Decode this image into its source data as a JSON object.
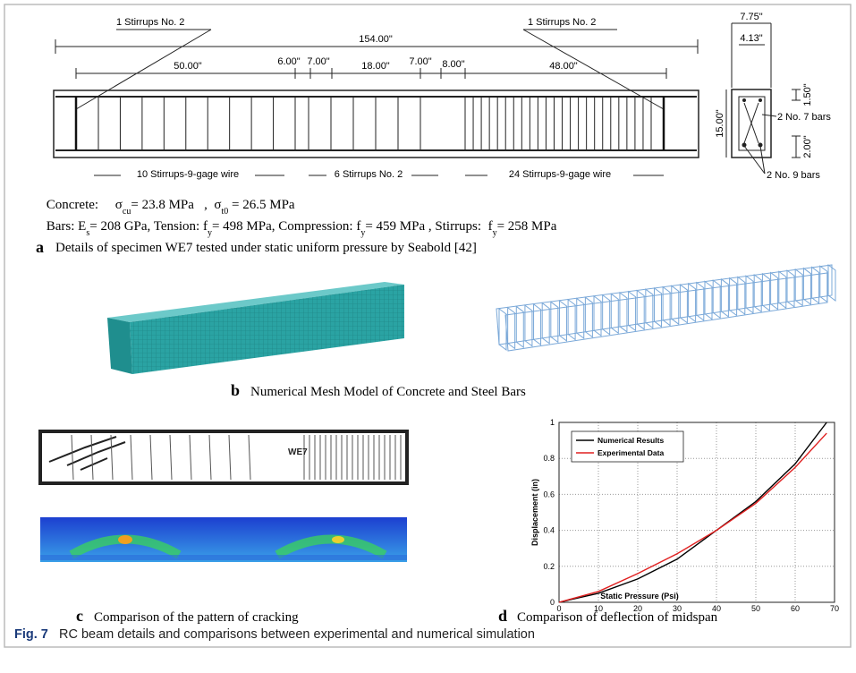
{
  "panel_a": {
    "leader_left": "1 Stirrups No. 2",
    "leader_right": "1 Stirrups No. 2",
    "dimensions": [
      "154.00\"",
      "50.00\"",
      "6.00\"",
      "7.00\"",
      "18.00\"",
      "7.00\"",
      "8.00\"",
      "48.00\""
    ],
    "stirrup_groups": [
      "10 Stirrups-9-gage wire",
      "6 Stirrups No. 2",
      "24 Stirrups-9-gage wire"
    ],
    "section": {
      "width_outer": "7.75\"",
      "width_inner": "4.13\"",
      "cover_top": "1.50\"",
      "height": "15.00\"",
      "cover_bottom": "2.00\"",
      "top_bars": "2 No. 7 bars",
      "bottom_bars": "2 No. 9 bars"
    },
    "concrete": [
      "Concrete:     σ",
      "cu",
      "= 23.8 MPa   ,  σ",
      "t0",
      " = 26.5 MPa"
    ],
    "bars": [
      "Bars: E",
      "s",
      "= 208 GPa, Tension: f",
      "y",
      "= 498 MPa, Compression: f",
      "y",
      "= 459 MPa , Stirrups:  f",
      "y",
      "= 258 MPa"
    ],
    "label": "a",
    "caption": "Details of specimen WE7 tested under static uniform pressure by Seabold [42]"
  },
  "panel_b": {
    "label": "b",
    "caption": "Numerical Mesh Model of Concrete and Steel Bars"
  },
  "panel_c": {
    "photo_label": "WE7",
    "label": "c",
    "caption": "Comparison of the pattern of cracking"
  },
  "panel_d": {
    "label": "d",
    "caption": "Comparison of deflection of midspan"
  },
  "chart_data": {
    "type": "line",
    "x_label": "Static Pressure (Psi)",
    "y_label": "Displacement (in)",
    "x": [
      0,
      10,
      20,
      30,
      40,
      50,
      60,
      68
    ],
    "series": [
      {
        "name": "Numerical Results",
        "color": "#000000",
        "values": [
          0,
          0.05,
          0.13,
          0.24,
          0.4,
          0.56,
          0.77,
          1.0
        ]
      },
      {
        "name": "Experimental Data",
        "color": "#e02020",
        "values": [
          0,
          0.06,
          0.16,
          0.27,
          0.4,
          0.55,
          0.75,
          0.94
        ]
      }
    ],
    "xlim": [
      0,
      70
    ],
    "ylim": [
      0,
      1
    ],
    "xticks": [
      0,
      10,
      20,
      30,
      40,
      50,
      60,
      70
    ],
    "yticks": [
      0,
      0.2,
      0.4,
      0.6,
      0.8,
      1
    ],
    "grid": true,
    "legend": "top-left"
  },
  "figure_caption": {
    "label": "Fig. 7",
    "text": "RC beam details and comparisons between experimental and numerical simulation"
  }
}
